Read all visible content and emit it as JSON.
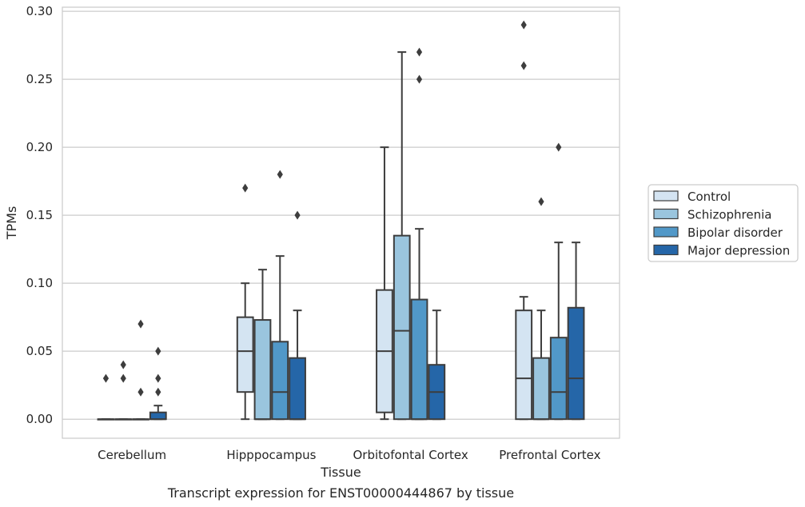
{
  "chart_data": {
    "type": "boxplot",
    "title": "",
    "xlabel": "Tissue",
    "ylabel": "TPMs",
    "caption": "Transcript expression for ENST00000444867 by tissue",
    "ylim": [
      -0.014,
      0.303
    ],
    "yticks": [
      0.0,
      0.05,
      0.1,
      0.15,
      0.2,
      0.25,
      0.3
    ],
    "ytick_labels": [
      "0.00",
      "0.05",
      "0.10",
      "0.15",
      "0.20",
      "0.25",
      "0.30"
    ],
    "grid": "horizontal",
    "legend_position": "right",
    "categories": [
      "Cerebellum",
      "Hipppocampus",
      "Orbitofontal Cortex",
      "Prefrontal Cortex"
    ],
    "series": [
      {
        "name": "Control",
        "color": "#d4e4f2",
        "boxes": [
          {
            "whislo": 0.0,
            "q1": 0.0,
            "med": 0.0,
            "q3": 0.0,
            "whishi": 0.0,
            "fliers": [
              0.03
            ]
          },
          {
            "whislo": 0.0,
            "q1": 0.02,
            "med": 0.05,
            "q3": 0.075,
            "whishi": 0.1,
            "fliers": [
              0.17
            ]
          },
          {
            "whislo": 0.0,
            "q1": 0.005,
            "med": 0.05,
            "q3": 0.095,
            "whishi": 0.2,
            "fliers": []
          },
          {
            "whislo": 0.0,
            "q1": 0.0,
            "med": 0.03,
            "q3": 0.08,
            "whishi": 0.09,
            "fliers": [
              0.26,
              0.29
            ]
          }
        ]
      },
      {
        "name": "Schizophrenia",
        "color": "#9ac5de",
        "boxes": [
          {
            "whislo": 0.0,
            "q1": 0.0,
            "med": 0.0,
            "q3": 0.0,
            "whishi": 0.0,
            "fliers": [
              0.03,
              0.04
            ]
          },
          {
            "whislo": 0.0,
            "q1": 0.0,
            "med": 0.0,
            "q3": 0.073,
            "whishi": 0.11,
            "fliers": []
          },
          {
            "whislo": 0.0,
            "q1": 0.0,
            "med": 0.065,
            "q3": 0.135,
            "whishi": 0.27,
            "fliers": []
          },
          {
            "whislo": 0.0,
            "q1": 0.0,
            "med": 0.0,
            "q3": 0.045,
            "whishi": 0.08,
            "fliers": [
              0.16
            ]
          }
        ]
      },
      {
        "name": "Bipolar disorder",
        "color": "#5198c8",
        "boxes": [
          {
            "whislo": 0.0,
            "q1": 0.0,
            "med": 0.0,
            "q3": 0.0,
            "whishi": 0.0,
            "fliers": [
              0.02,
              0.07
            ]
          },
          {
            "whislo": 0.0,
            "q1": 0.0,
            "med": 0.02,
            "q3": 0.057,
            "whishi": 0.12,
            "fliers": [
              0.18
            ]
          },
          {
            "whislo": 0.0,
            "q1": 0.0,
            "med": 0.0,
            "q3": 0.088,
            "whishi": 0.14,
            "fliers": [
              0.25,
              0.27
            ]
          },
          {
            "whislo": 0.0,
            "q1": 0.0,
            "med": 0.02,
            "q3": 0.06,
            "whishi": 0.13,
            "fliers": [
              0.2
            ]
          }
        ]
      },
      {
        "name": "Major depression",
        "color": "#2566a8",
        "boxes": [
          {
            "whislo": 0.0,
            "q1": 0.0,
            "med": 0.0,
            "q3": 0.005,
            "whishi": 0.01,
            "fliers": [
              0.02,
              0.03,
              0.05
            ]
          },
          {
            "whislo": 0.0,
            "q1": 0.0,
            "med": 0.0,
            "q3": 0.045,
            "whishi": 0.08,
            "fliers": [
              0.15
            ]
          },
          {
            "whislo": 0.0,
            "q1": 0.0,
            "med": 0.02,
            "q3": 0.04,
            "whishi": 0.08,
            "fliers": []
          },
          {
            "whislo": 0.0,
            "q1": 0.0,
            "med": 0.03,
            "q3": 0.082,
            "whishi": 0.13,
            "fliers": []
          }
        ]
      }
    ]
  }
}
